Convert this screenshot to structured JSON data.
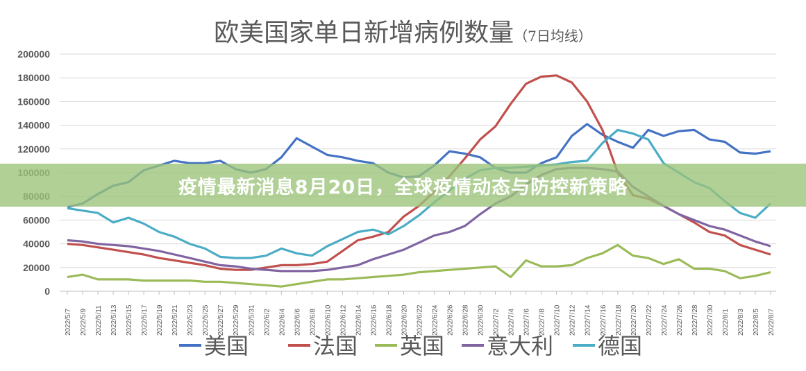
{
  "chart_data": {
    "type": "line",
    "title": "欧美国家单日新增病例数量",
    "subtitle": "（7日均线）",
    "xlabel": "",
    "ylabel": "",
    "ylim": [
      0,
      200000
    ],
    "yticks": [
      0,
      20000,
      40000,
      60000,
      80000,
      100000,
      120000,
      140000,
      160000,
      180000,
      200000
    ],
    "grid": true,
    "legend_position": "bottom",
    "x": [
      "2022/5/7",
      "2022/5/9",
      "2022/5/11",
      "2022/5/13",
      "2022/5/15",
      "2022/5/17",
      "2022/5/19",
      "2022/5/21",
      "2022/5/23",
      "2022/5/25",
      "2022/5/27",
      "2022/5/29",
      "2022/5/31",
      "2022/6/2",
      "2022/6/4",
      "2022/6/6",
      "2022/6/8",
      "2022/6/10",
      "2022/6/12",
      "2022/6/14",
      "2022/6/16",
      "2022/6/18",
      "2022/6/20",
      "2022/6/22",
      "2022/6/24",
      "2022/6/26",
      "2022/6/28",
      "2022/6/30",
      "2022/7/2",
      "2022/7/4",
      "2022/7/6",
      "2022/7/8",
      "2022/7/10",
      "2022/7/12",
      "2022/7/14",
      "2022/7/16",
      "2022/7/18",
      "2022/7/20",
      "2022/7/22",
      "2022/7/24",
      "2022/7/26",
      "2022/7/28",
      "2022/7/30",
      "2022/8/1",
      "2022/8/3",
      "2022/8/5",
      "2022/8/7"
    ],
    "series": [
      {
        "name": "美国",
        "color": "#4472c4",
        "values": [
          71000,
          74000,
          82000,
          89000,
          92000,
          102000,
          106000,
          110000,
          108000,
          108000,
          110000,
          103000,
          100000,
          103000,
          113000,
          129000,
          122000,
          115000,
          113000,
          110000,
          108000,
          100000,
          96000,
          97000,
          106000,
          118000,
          116000,
          113000,
          104000,
          100000,
          100000,
          108000,
          113000,
          131000,
          141000,
          132000,
          126000,
          121000,
          136000,
          131000,
          135000,
          136000,
          128000,
          126000,
          117000,
          116000,
          118000
        ]
      },
      {
        "name": "法国",
        "color": "#c0504d",
        "values": [
          40000,
          39000,
          37000,
          35000,
          33000,
          31000,
          28000,
          26000,
          24000,
          22000,
          19000,
          18000,
          18000,
          20000,
          22000,
          22000,
          23000,
          25000,
          34000,
          43000,
          46000,
          50000,
          63000,
          72000,
          84000,
          97000,
          112000,
          128000,
          139000,
          158000,
          175000,
          181000,
          182000,
          176000,
          160000,
          136000,
          100000,
          81000,
          78000,
          72000,
          65000,
          58000,
          50000,
          47000,
          39000,
          35000,
          31000
        ]
      },
      {
        "name": "英国",
        "color": "#9bbb59",
        "values": [
          12000,
          14000,
          10000,
          10000,
          10000,
          9000,
          9000,
          9000,
          9000,
          8000,
          8000,
          7000,
          6000,
          5000,
          4000,
          6000,
          8000,
          10000,
          10000,
          11000,
          12000,
          13000,
          14000,
          16000,
          17000,
          18000,
          19000,
          20000,
          21000,
          12000,
          26000,
          21000,
          21000,
          22000,
          28000,
          32000,
          39000,
          30000,
          28000,
          23000,
          27000,
          19000,
          19000,
          17000,
          11000,
          13000,
          16000
        ]
      },
      {
        "name": "意大利",
        "color": "#8064a2",
        "values": [
          43000,
          42000,
          40000,
          39000,
          38000,
          36000,
          34000,
          31000,
          28000,
          25000,
          22000,
          21000,
          19000,
          18000,
          17000,
          17000,
          17000,
          18000,
          20000,
          22000,
          27000,
          31000,
          35000,
          41000,
          47000,
          50000,
          55000,
          65000,
          74000,
          80000,
          90000,
          98000,
          103000,
          104000,
          104000,
          103000,
          101000,
          88000,
          80000,
          72000,
          65000,
          60000,
          55000,
          52000,
          47000,
          42000,
          38000
        ]
      },
      {
        "name": "德国",
        "color": "#4bacc6",
        "values": [
          70000,
          68000,
          66000,
          58000,
          62000,
          57000,
          50000,
          46000,
          40000,
          36000,
          29000,
          28000,
          28000,
          30000,
          36000,
          32000,
          30000,
          38000,
          44000,
          50000,
          52000,
          48000,
          55000,
          64000,
          75000,
          85000,
          95000,
          102000,
          104000,
          104000,
          105000,
          106000,
          107000,
          109000,
          110000,
          125000,
          136000,
          133000,
          128000,
          108000,
          100000,
          92000,
          87000,
          76000,
          66000,
          62000,
          74000
        ]
      }
    ]
  },
  "banner": {
    "text": "疫情最新消息8月20日，全球疫情动态与防控新策略"
  }
}
